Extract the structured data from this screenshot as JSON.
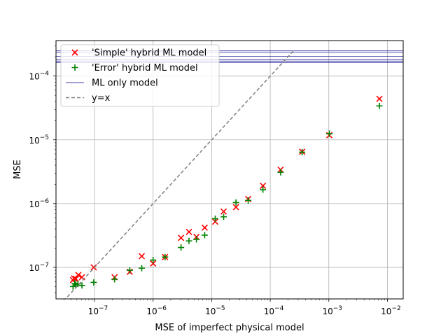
{
  "chart_data": {
    "type": "scatter",
    "xlabel": "MSE of imperfect physical model",
    "ylabel": "MSE",
    "xscale": "log",
    "yscale": "log",
    "xlim": [
      2.2e-08,
      0.0186
    ],
    "ylim": [
      3.2e-08,
      0.00036
    ],
    "grid": true,
    "legend_position": "upper-left",
    "x_ticks": [
      {
        "value": 1e-07,
        "base": "10",
        "exp": "−7"
      },
      {
        "value": 1e-06,
        "base": "10",
        "exp": "−6"
      },
      {
        "value": 1e-05,
        "base": "10",
        "exp": "−5"
      },
      {
        "value": 0.0001,
        "base": "10",
        "exp": "−4"
      },
      {
        "value": 0.001,
        "base": "10",
        "exp": "−3"
      },
      {
        "value": 0.01,
        "base": "10",
        "exp": "−2"
      }
    ],
    "y_ticks": [
      {
        "value": 1e-07,
        "base": "10",
        "exp": "−7"
      },
      {
        "value": 1e-06,
        "base": "10",
        "exp": "−6"
      },
      {
        "value": 1e-05,
        "base": "10",
        "exp": "−5"
      },
      {
        "value": 0.0001,
        "base": "10",
        "exp": "−4"
      }
    ],
    "series": [
      {
        "name": "'Simple' hybrid ML model",
        "marker": "x",
        "color": "#ff0000",
        "points": [
          [
            4.3e-08,
            6.3e-08
          ],
          [
            4.5e-08,
            6.7e-08
          ],
          [
            4.8e-08,
            6.6e-08
          ],
          [
            5.3e-08,
            7.6e-08
          ],
          [
            6.1e-08,
            7e-08
          ],
          [
            9.7e-08,
            1e-07
          ],
          [
            2.2e-07,
            7e-08
          ],
          [
            4e-07,
            8.5e-08
          ],
          [
            6.4e-07,
            1.5e-07
          ],
          [
            1e-06,
            1.15e-07
          ],
          [
            1.6e-06,
            1.45e-07
          ],
          [
            3e-06,
            2.9e-07
          ],
          [
            4.1e-06,
            3.6e-07
          ],
          [
            5.5e-06,
            3e-07
          ],
          [
            7.6e-06,
            4.2e-07
          ],
          [
            1.15e-05,
            5.2e-07
          ],
          [
            1.6e-05,
            7.5e-07
          ],
          [
            2.6e-05,
            8.8e-07
          ],
          [
            4.2e-05,
            1.18e-06
          ],
          [
            7.5e-05,
            1.9e-06
          ],
          [
            0.00015,
            3.4e-06
          ],
          [
            0.00035,
            6.5e-06
          ],
          [
            0.00102,
            1.18e-05
          ],
          [
            0.0073,
            4.4e-05
          ]
        ]
      },
      {
        "name": "'Error' hybrid ML model",
        "marker": "+",
        "color": "#008000",
        "points": [
          [
            4.3e-08,
            5e-08
          ],
          [
            4.6e-08,
            5.6e-08
          ],
          [
            4.8e-08,
            5.3e-08
          ],
          [
            5.2e-08,
            5.5e-08
          ],
          [
            6.1e-08,
            5.2e-08
          ],
          [
            9.7e-08,
            5.8e-08
          ],
          [
            2.2e-07,
            6.5e-08
          ],
          [
            4e-07,
            9e-08
          ],
          [
            6.4e-07,
            9.7e-08
          ],
          [
            1e-06,
            1.3e-07
          ],
          [
            1.6e-06,
            1.45e-07
          ],
          [
            3e-06,
            2.05e-07
          ],
          [
            4.1e-06,
            2.6e-07
          ],
          [
            5.5e-06,
            2.75e-07
          ],
          [
            7.6e-06,
            3.2e-07
          ],
          [
            1.15e-05,
            5.8e-07
          ],
          [
            1.6e-05,
            6.2e-07
          ],
          [
            2.6e-05,
            1.04e-06
          ],
          [
            4.2e-05,
            1.12e-06
          ],
          [
            7.5e-05,
            1.65e-06
          ],
          [
            0.00015,
            3.1e-06
          ],
          [
            0.00035,
            6.4e-06
          ],
          [
            0.00102,
            1.25e-05
          ],
          [
            0.0073,
            3.4e-05
          ]
        ]
      },
      {
        "name": "ML only model",
        "type": "hlines",
        "color": "#00008b",
        "values": [
          0.000162,
          0.000172,
          0.000182,
          0.000203,
          0.000234,
          0.000248
        ]
      },
      {
        "name": "y=x",
        "type": "line",
        "dash": true,
        "color": "#808080",
        "x_range": [
          2.2e-08,
          0.00025
        ]
      }
    ]
  }
}
